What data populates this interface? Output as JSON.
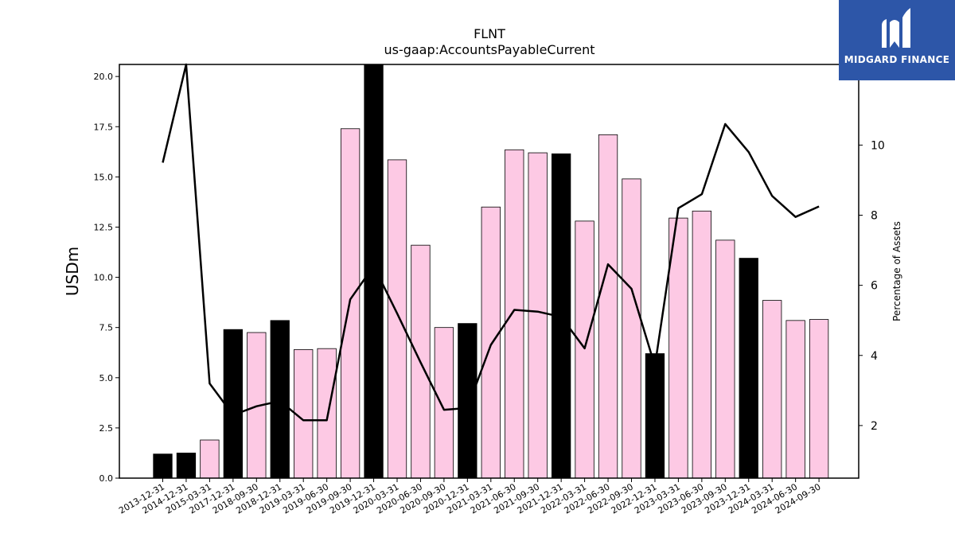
{
  "logo": {
    "text": "MIDGARD FINANCE",
    "icon": "midgard-logo-icon",
    "background": "#2d56a8"
  },
  "chart_data": {
    "type": "bar",
    "title": "FLNT",
    "subtitle": "us-gaap:AccountsPayableCurrent",
    "ylabel": "USDm",
    "y2label": "Percentage of Assets",
    "ylim": [
      0,
      20.6
    ],
    "y2lim": [
      0.5,
      12.3
    ],
    "yticks": [
      "0.0",
      "2.5",
      "5.0",
      "7.5",
      "10.0",
      "12.5",
      "15.0",
      "17.5",
      "20.0"
    ],
    "y2ticks": [
      "2",
      "4",
      "6",
      "8",
      "10"
    ],
    "categories": [
      "2013-12-31",
      "2014-12-31",
      "2015-03-31",
      "2017-12-31",
      "2018-09-30",
      "2018-12-31",
      "2019-03-31",
      "2019-06-30",
      "2019-09-30",
      "2019-12-31",
      "2020-03-31",
      "2020-06-30",
      "2020-09-30",
      "2020-12-31",
      "2021-03-31",
      "2021-06-30",
      "2021-09-30",
      "2021-12-31",
      "2022-03-31",
      "2022-06-30",
      "2022-09-30",
      "2022-12-31",
      "2023-03-31",
      "2023-06-30",
      "2023-09-30",
      "2023-12-31",
      "2024-03-31",
      "2024-06-30",
      "2024-09-30"
    ],
    "series": [
      {
        "kind": "bar",
        "values": [
          1.2,
          1.25,
          1.9,
          7.4,
          7.25,
          7.85,
          6.4,
          6.45,
          17.4,
          20.6,
          15.85,
          11.6,
          7.5,
          7.7,
          13.5,
          16.35,
          16.2,
          16.15,
          12.8,
          17.1,
          14.9,
          6.2,
          12.95,
          13.3,
          11.85,
          10.95,
          8.85,
          7.85,
          7.9
        ]
      },
      {
        "kind": "line",
        "axis": "right",
        "values": [
          9.5,
          12.3,
          3.2,
          2.3,
          2.55,
          2.7,
          2.15,
          2.15,
          5.6,
          6.55,
          5.2,
          3.8,
          2.45,
          2.5,
          4.3,
          5.3,
          5.25,
          5.1,
          4.2,
          6.6,
          5.9,
          3.7,
          8.2,
          8.6,
          10.6,
          9.8,
          8.55,
          7.95,
          8.25
        ]
      }
    ],
    "bar_colors": {
      "dec": "#000000",
      "other": "#fdc9e4"
    },
    "line_color": "#000000",
    "grid": false,
    "legend": "none"
  }
}
